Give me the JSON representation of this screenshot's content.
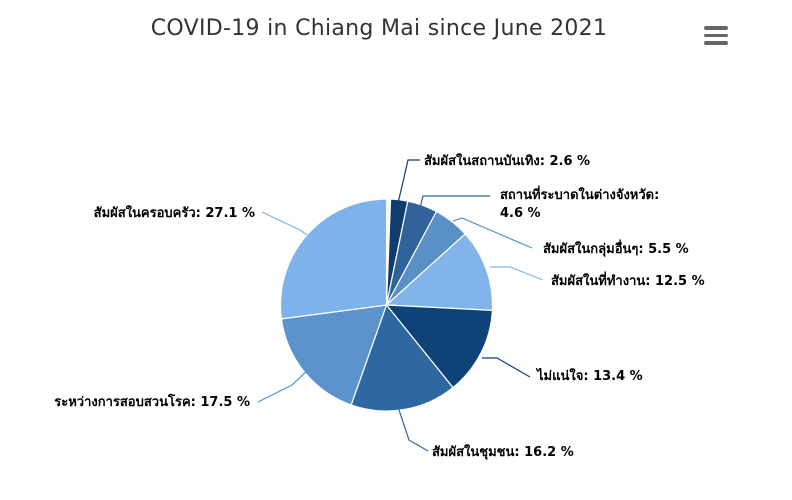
{
  "chart_data": {
    "type": "pie",
    "title": "COVID-19 in Chiang Mai since June 2021",
    "slices": [
      {
        "label": "สัมผัสในสถานบันเทิง",
        "value": 2.6,
        "display": "สัมผัสในสถานบันเทิง: 2.6 %",
        "color": "#0f3e6e"
      },
      {
        "label": "สถานที่ระบาดในต่างจังหวัด",
        "value": 4.6,
        "display": [
          "สถานที่ระบาดในต่างจังหวัด:",
          "4.6 %"
        ],
        "color": "#2f6399"
      },
      {
        "label": "สัมผัสในกลุ่มอื่นๆ",
        "value": 5.5,
        "display": "สัมผัสในกลุ่มอื่นๆ: 5.5 %",
        "color": "#5990c6"
      },
      {
        "label": "สัมผัสในที่ทำงาน",
        "value": 12.5,
        "display": "สัมผัสในที่ทำงาน: 12.5 %",
        "color": "#80b4eb"
      },
      {
        "label": "ไม่แน่ใจ",
        "value": 13.4,
        "display": "ไม่แน่ใจ: 13.4 %",
        "color": "#0f4277"
      },
      {
        "label": "สัมผัสในชุมชน",
        "value": 16.2,
        "display": "สัมผัสในชุมชน: 16.2 %",
        "color": "#2f67a2"
      },
      {
        "label": "ระหว่างการสอบสวนโรค",
        "value": 17.5,
        "display": "ระหว่างการสอบสวนโรค: 17.5 %",
        "color": "#5c93cd"
      },
      {
        "label": "สัมผัสในครอบครัว",
        "value": 27.1,
        "display": "สัมผัสในครอบครัว: 27.1 %",
        "color": "#7db2ea"
      }
    ]
  },
  "menu": {
    "icon": "hamburger-menu-icon"
  }
}
